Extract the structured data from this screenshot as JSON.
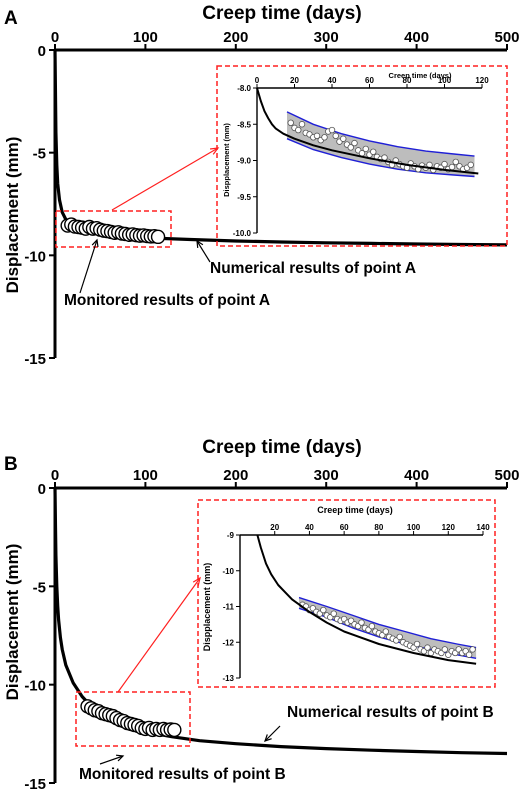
{
  "colors": {
    "axis": "#000000",
    "model": "#000000",
    "points_fill": "#ffffff",
    "points_stroke": "#000000",
    "band_fill": "#bdbdbd",
    "band_edge": "#1f1fd6",
    "callout": "#ff2020"
  },
  "chart_data": [
    {
      "type": "line",
      "panel_label": "A",
      "title": "Creep time (days)",
      "xlabel": "Creep time (days)",
      "ylabel": "Displacement (mm)",
      "xlim": [
        0,
        500
      ],
      "ylim": [
        0,
        -15
      ],
      "x_axis_position": "top",
      "xticks": [
        "0",
        "100",
        "200",
        "300",
        "400",
        "500"
      ],
      "yticks": [
        "0",
        "-5",
        "-10",
        "-15"
      ],
      "grid": false,
      "series": [
        {
          "name": "Numerical results of point A",
          "kind": "line",
          "x": [
            0,
            1,
            2,
            3,
            5,
            8,
            12,
            18,
            25,
            40,
            60,
            80,
            100,
            120,
            150,
            200,
            250,
            300,
            350,
            400,
            450,
            500
          ],
          "y": [
            0,
            -4.0,
            -5.6,
            -6.5,
            -7.3,
            -7.9,
            -8.25,
            -8.5,
            -8.65,
            -8.85,
            -9.0,
            -9.08,
            -9.14,
            -9.18,
            -9.23,
            -9.3,
            -9.35,
            -9.39,
            -9.42,
            -9.45,
            -9.47,
            -9.49
          ]
        },
        {
          "name": "Monitored results of point A",
          "kind": "scatter",
          "x": [
            14,
            18,
            22,
            26,
            30,
            34,
            38,
            42,
            46,
            50,
            54,
            58,
            62,
            66,
            70,
            74,
            78,
            82,
            86,
            90,
            94,
            98,
            102,
            106,
            110,
            114
          ],
          "y": [
            -8.55,
            -8.5,
            -8.6,
            -8.62,
            -8.65,
            -8.7,
            -8.62,
            -8.7,
            -8.68,
            -8.75,
            -8.8,
            -8.82,
            -8.86,
            -8.9,
            -8.88,
            -8.94,
            -8.96,
            -9.0,
            -8.98,
            -9.02,
            -9.04,
            -9.03,
            -9.06,
            -9.08,
            -9.07,
            -9.1
          ]
        }
      ],
      "annotations": [
        "Numerical results of point A",
        "Monitored results of point A"
      ],
      "inset": {
        "xlabel": "Creep time (days)",
        "ylabel": "Dispplacement (mm)",
        "xlim": [
          0,
          120
        ],
        "ylim": [
          -8.0,
          -10.0
        ],
        "xticks": [
          "0",
          "20",
          "40",
          "60",
          "80",
          "100",
          "120"
        ],
        "yticks": [
          "-8.0",
          "-8.5",
          "-9.0",
          "-9.5",
          "-10.0"
        ],
        "band_x": [
          16,
          30,
          45,
          60,
          75,
          90,
          105,
          116
        ],
        "band_upper": [
          -8.33,
          -8.5,
          -8.63,
          -8.73,
          -8.81,
          -8.87,
          -8.91,
          -8.94
        ],
        "band_lower": [
          -8.7,
          -8.85,
          -8.96,
          -9.05,
          -9.12,
          -9.17,
          -9.2,
          -9.22
        ],
        "model_x": [
          0,
          2,
          4,
          6,
          8,
          10,
          14,
          20,
          30,
          40,
          60,
          80,
          100,
          118
        ],
        "model_y": [
          -8.0,
          -8.18,
          -8.32,
          -8.42,
          -8.5,
          -8.56,
          -8.63,
          -8.7,
          -8.79,
          -8.86,
          -8.97,
          -9.06,
          -9.13,
          -9.18
        ],
        "points_x": [
          18,
          20,
          22,
          24,
          26,
          28,
          30,
          32,
          34,
          36,
          38,
          40,
          42,
          44,
          46,
          48,
          50,
          52,
          54,
          56,
          58,
          60,
          62,
          64,
          66,
          68,
          70,
          72,
          74,
          76,
          78,
          80,
          82,
          84,
          86,
          88,
          90,
          92,
          94,
          96,
          98,
          100,
          102,
          104,
          106,
          108,
          110,
          112,
          114
        ],
        "points_y": [
          -8.48,
          -8.55,
          -8.58,
          -8.5,
          -8.62,
          -8.64,
          -8.68,
          -8.66,
          -8.72,
          -8.68,
          -8.6,
          -8.58,
          -8.66,
          -8.74,
          -8.7,
          -8.78,
          -8.82,
          -8.76,
          -8.86,
          -8.9,
          -8.84,
          -8.92,
          -8.88,
          -8.95,
          -8.98,
          -8.96,
          -9.02,
          -9.06,
          -9.0,
          -9.05,
          -9.08,
          -9.1,
          -9.04,
          -9.08,
          -9.12,
          -9.07,
          -9.1,
          -9.06,
          -9.13,
          -9.08,
          -9.1,
          -9.05,
          -9.12,
          -9.09,
          -9.02,
          -9.08,
          -9.12,
          -9.1,
          -9.06
        ]
      }
    },
    {
      "type": "line",
      "panel_label": "B",
      "title": "Creep time (days)",
      "xlabel": "Creep time (days)",
      "ylabel": "Displacement (mm)",
      "xlim": [
        0,
        500
      ],
      "ylim": [
        0,
        -15
      ],
      "x_axis_position": "top",
      "xticks": [
        "0",
        "100",
        "200",
        "300",
        "400",
        "500"
      ],
      "yticks": [
        "0",
        "-5",
        "-10",
        "-15"
      ],
      "grid": false,
      "series": [
        {
          "name": "Numerical results of point B",
          "kind": "line",
          "x": [
            0,
            0.5,
            1,
            1.5,
            2,
            3,
            4,
            6,
            8,
            12,
            20,
            30,
            40,
            60,
            80,
            100,
            130,
            160,
            200,
            250,
            300,
            350,
            400,
            450,
            500
          ],
          "y": [
            0,
            -2.0,
            -3.4,
            -4.3,
            -5.0,
            -6.0,
            -6.7,
            -7.6,
            -8.2,
            -9.0,
            -9.9,
            -10.6,
            -11.1,
            -11.7,
            -12.1,
            -12.4,
            -12.65,
            -12.85,
            -13.0,
            -13.15,
            -13.25,
            -13.33,
            -13.4,
            -13.46,
            -13.5
          ]
        },
        {
          "name": "Monitored results of point B",
          "kind": "scatter",
          "x": [
            36,
            40,
            44,
            48,
            52,
            56,
            60,
            64,
            68,
            72,
            76,
            80,
            84,
            88,
            92,
            96,
            100,
            104,
            108,
            112,
            116,
            120,
            124,
            128,
            132
          ],
          "y": [
            -11.1,
            -11.2,
            -11.3,
            -11.35,
            -11.45,
            -11.5,
            -11.55,
            -11.6,
            -11.7,
            -11.8,
            -11.85,
            -11.95,
            -12.0,
            -12.05,
            -12.1,
            -12.2,
            -12.25,
            -12.2,
            -12.3,
            -12.25,
            -12.3,
            -12.25,
            -12.3,
            -12.28,
            -12.3
          ]
        }
      ],
      "annotations": [
        "Numerical results of point B",
        "Monitored results of point B"
      ],
      "inset": {
        "xlabel": "Creep time (days)",
        "ylabel": "Dispplacement (mm)",
        "xlim": [
          0,
          140
        ],
        "ylim": [
          -9,
          -13
        ],
        "xticks": [
          "20",
          "40",
          "60",
          "80",
          "100",
          "120",
          "140"
        ],
        "yticks": [
          "-9",
          "-10",
          "-11",
          "-12",
          "-13"
        ],
        "band_x": [
          34,
          50,
          65,
          80,
          95,
          110,
          125,
          136
        ],
        "band_upper": [
          -10.75,
          -11.0,
          -11.25,
          -11.5,
          -11.7,
          -11.9,
          -12.05,
          -12.15
        ],
        "band_lower": [
          -11.05,
          -11.3,
          -11.6,
          -11.85,
          -12.05,
          -12.2,
          -12.35,
          -12.45
        ],
        "model_x": [
          10,
          12,
          15,
          18,
          22,
          26,
          30,
          40,
          50,
          60,
          80,
          100,
          120,
          136
        ],
        "model_y": [
          -9.0,
          -9.35,
          -9.8,
          -10.1,
          -10.4,
          -10.6,
          -10.8,
          -11.15,
          -11.45,
          -11.7,
          -12.05,
          -12.3,
          -12.5,
          -12.6
        ],
        "points_x": [
          36,
          38,
          40,
          42,
          44,
          46,
          48,
          50,
          52,
          54,
          56,
          58,
          60,
          62,
          64,
          66,
          68,
          70,
          72,
          74,
          76,
          78,
          80,
          82,
          84,
          86,
          88,
          90,
          92,
          94,
          96,
          98,
          100,
          102,
          104,
          106,
          108,
          110,
          112,
          114,
          116,
          118,
          120,
          122,
          124,
          126,
          128,
          130,
          132,
          134
        ],
        "points_y": [
          -10.95,
          -11.0,
          -11.1,
          -11.05,
          -11.15,
          -11.2,
          -11.1,
          -11.25,
          -11.3,
          -11.2,
          -11.35,
          -11.4,
          -11.35,
          -11.45,
          -11.4,
          -11.5,
          -11.55,
          -11.45,
          -11.6,
          -11.65,
          -11.55,
          -11.7,
          -11.75,
          -11.8,
          -11.7,
          -11.85,
          -11.9,
          -11.95,
          -11.85,
          -12.0,
          -12.05,
          -12.1,
          -12.15,
          -12.05,
          -12.2,
          -12.25,
          -12.15,
          -12.3,
          -12.2,
          -12.25,
          -12.3,
          -12.2,
          -12.35,
          -12.25,
          -12.3,
          -12.2,
          -12.3,
          -12.25,
          -12.35,
          -12.2
        ]
      }
    }
  ]
}
